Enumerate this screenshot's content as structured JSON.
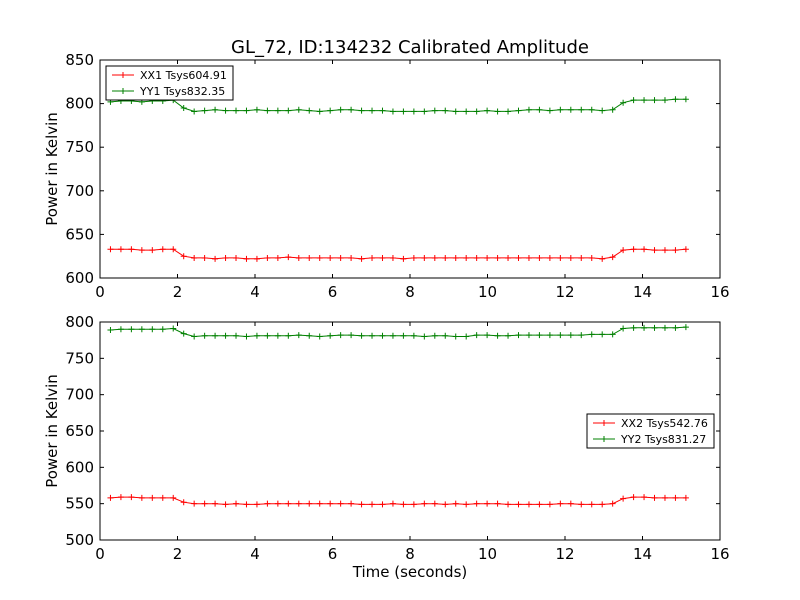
{
  "chart_data": [
    {
      "type": "line",
      "title": "GL_72, ID:134232 Calibrated Amplitude",
      "xlabel": "",
      "ylabel": "Power in Kelvin",
      "xlim": [
        0,
        16
      ],
      "ylim": [
        600,
        850
      ],
      "xticks": [
        "0",
        "2",
        "4",
        "6",
        "8",
        "10",
        "12",
        "14",
        "16"
      ],
      "yticks": [
        "600",
        "650",
        "700",
        "750",
        "800",
        "850"
      ],
      "grid": false,
      "legend_position": "upper-left",
      "x": [
        0.27,
        0.54,
        0.81,
        1.08,
        1.35,
        1.62,
        1.89,
        2.16,
        2.43,
        2.7,
        2.97,
        3.24,
        3.51,
        3.78,
        4.05,
        4.32,
        4.59,
        4.86,
        5.13,
        5.4,
        5.67,
        5.94,
        6.21,
        6.48,
        6.75,
        7.02,
        7.29,
        7.56,
        7.83,
        8.1,
        8.37,
        8.64,
        8.91,
        9.18,
        9.45,
        9.72,
        9.99,
        10.26,
        10.53,
        10.8,
        11.07,
        11.34,
        11.61,
        11.88,
        12.15,
        12.42,
        12.69,
        12.96,
        13.23,
        13.5,
        13.77,
        14.04,
        14.31,
        14.58,
        14.85,
        15.12
      ],
      "series": [
        {
          "name": "XX1 Tsys604.91",
          "color": "#ff0000",
          "values": [
            633,
            633,
            633,
            632,
            632,
            633,
            633,
            625,
            623,
            623,
            622,
            623,
            623,
            622,
            622,
            623,
            623,
            624,
            623,
            623,
            623,
            623,
            623,
            623,
            622,
            623,
            623,
            623,
            622,
            623,
            623,
            623,
            623,
            623,
            623,
            623,
            623,
            623,
            623,
            623,
            623,
            623,
            623,
            623,
            623,
            623,
            623,
            622,
            624,
            632,
            633,
            633,
            632,
            632,
            632,
            633
          ]
        },
        {
          "name": "YY1 Tsys832.35",
          "color": "#008000",
          "values": [
            802,
            803,
            803,
            802,
            803,
            803,
            804,
            795,
            791,
            792,
            793,
            792,
            792,
            792,
            793,
            792,
            792,
            792,
            793,
            792,
            791,
            792,
            793,
            793,
            792,
            792,
            792,
            791,
            791,
            791,
            791,
            792,
            792,
            791,
            791,
            791,
            792,
            791,
            791,
            792,
            793,
            793,
            792,
            793,
            793,
            793,
            793,
            792,
            793,
            801,
            804,
            804,
            804,
            804,
            805,
            805
          ]
        }
      ]
    },
    {
      "type": "line",
      "title": "",
      "xlabel": "Time (seconds)",
      "ylabel": "Power in Kelvin",
      "xlim": [
        0,
        16
      ],
      "ylim": [
        500,
        800
      ],
      "xticks": [
        "0",
        "2",
        "4",
        "6",
        "8",
        "10",
        "12",
        "14",
        "16"
      ],
      "yticks": [
        "500",
        "550",
        "600",
        "650",
        "700",
        "750",
        "800"
      ],
      "grid": false,
      "legend_position": "center-right",
      "x": [
        0.27,
        0.54,
        0.81,
        1.08,
        1.35,
        1.62,
        1.89,
        2.16,
        2.43,
        2.7,
        2.97,
        3.24,
        3.51,
        3.78,
        4.05,
        4.32,
        4.59,
        4.86,
        5.13,
        5.4,
        5.67,
        5.94,
        6.21,
        6.48,
        6.75,
        7.02,
        7.29,
        7.56,
        7.83,
        8.1,
        8.37,
        8.64,
        8.91,
        9.18,
        9.45,
        9.72,
        9.99,
        10.26,
        10.53,
        10.8,
        11.07,
        11.34,
        11.61,
        11.88,
        12.15,
        12.42,
        12.69,
        12.96,
        13.23,
        13.5,
        13.77,
        14.04,
        14.31,
        14.58,
        14.85,
        15.12
      ],
      "series": [
        {
          "name": "XX2 Tsys542.76",
          "color": "#ff0000",
          "values": [
            558,
            559,
            559,
            558,
            558,
            558,
            558,
            552,
            550,
            550,
            550,
            549,
            550,
            549,
            549,
            550,
            550,
            550,
            550,
            550,
            550,
            550,
            550,
            550,
            549,
            549,
            549,
            550,
            549,
            549,
            550,
            550,
            549,
            550,
            549,
            550,
            550,
            550,
            549,
            549,
            549,
            549,
            549,
            550,
            550,
            549,
            549,
            549,
            550,
            557,
            559,
            559,
            558,
            558,
            558,
            558
          ]
        },
        {
          "name": "YY2 Tsys831.27",
          "color": "#008000",
          "values": [
            789,
            790,
            790,
            790,
            790,
            790,
            791,
            784,
            780,
            781,
            781,
            781,
            781,
            780,
            781,
            781,
            781,
            781,
            782,
            781,
            780,
            781,
            782,
            782,
            781,
            781,
            781,
            781,
            781,
            781,
            780,
            781,
            781,
            780,
            780,
            782,
            782,
            781,
            781,
            782,
            782,
            782,
            782,
            782,
            782,
            782,
            783,
            783,
            783,
            791,
            792,
            792,
            792,
            792,
            792,
            793
          ]
        }
      ]
    }
  ]
}
